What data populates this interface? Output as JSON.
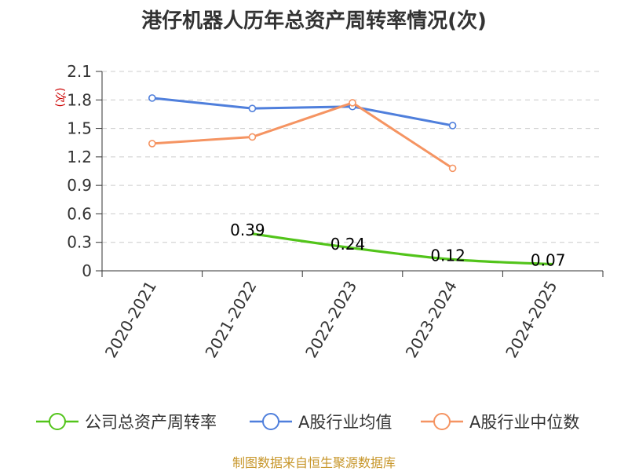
{
  "chart_data": {
    "type": "line",
    "title": "港仔机器人历年总资产周转率情况(次)",
    "ylabel": "(次)",
    "categories": [
      "2020-2021",
      "2021-2022",
      "2022-2023",
      "2023-2024",
      "2024-2025"
    ],
    "ylim": [
      0,
      2.1
    ],
    "yticks": [
      0,
      0.3,
      0.6,
      0.9,
      1.2,
      1.5,
      1.8,
      2.1
    ],
    "ytick_labels": [
      "0",
      "0.3",
      "0.6",
      "0.9",
      "1.2",
      "1.5",
      "1.8",
      "2.1"
    ],
    "grid": true,
    "legend_position": "bottom",
    "series": [
      {
        "name": "公司总资产周转率",
        "color": "#52c41a",
        "values": [
          null,
          0.39,
          0.24,
          0.12,
          0.07
        ],
        "data_labels": [
          null,
          "0.39",
          "0.24",
          "0.12",
          "0.07"
        ],
        "markers": false
      },
      {
        "name": "A股行业均值",
        "color": "#4f7fdc",
        "values": [
          1.82,
          1.71,
          1.73,
          1.53,
          null
        ],
        "markers": true
      },
      {
        "name": "A股行业中位数",
        "color": "#f59462",
        "values": [
          1.34,
          1.41,
          1.77,
          1.08,
          null
        ],
        "markers": true
      }
    ],
    "source": "制图数据来自恒生聚源数据库"
  }
}
